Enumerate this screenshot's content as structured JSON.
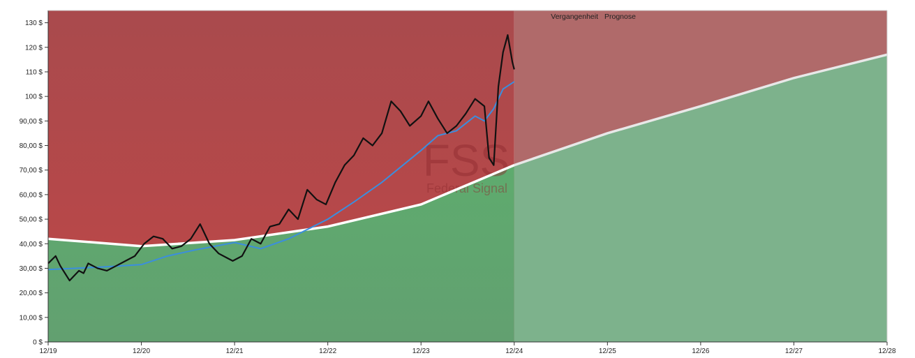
{
  "chart_data": {
    "type": "area",
    "watermark": {
      "ticker": "FSS",
      "name": "Federal Signal"
    },
    "region_labels": {
      "past": "Vergangenheit",
      "forecast": "Prognose"
    },
    "x_ticks": [
      "12/19",
      "12/20",
      "12/21",
      "12/22",
      "12/23",
      "12/24",
      "12/25",
      "12/26",
      "12/27",
      "12/28"
    ],
    "x_range": [
      2019.92,
      2028.92
    ],
    "forecast_start": 2024.92,
    "ylim": [
      0,
      135
    ],
    "y_ticks": [
      0,
      10,
      20,
      30,
      40,
      50,
      60,
      70,
      80,
      90,
      100,
      110,
      120,
      130
    ],
    "y_tick_labels": [
      "0 $",
      "10,00 $",
      "20,00 $",
      "30,00 $",
      "40,00 $",
      "50,00 $",
      "60,00 $",
      "70,00 $",
      "80,00 $",
      "90,00 $",
      "100 $",
      "110 $",
      "120 $",
      "130 $"
    ],
    "colors": {
      "red_zone": "#b84848",
      "green_zone": "#5fae73",
      "forecast_red": "#b06a6a",
      "forecast_green": "#7db28c",
      "fair_value_line": "#ffffff",
      "price_line": "#111111",
      "moving_average": "#3b8ede"
    },
    "series": [
      {
        "key": "fair_value",
        "x": [
          2019.92,
          2020.92,
          2021.92,
          2022.92,
          2023.92,
          2024.92,
          2025.92,
          2026.92,
          2027.92,
          2028.92
        ],
        "values": [
          42,
          39,
          41.5,
          47,
          56,
          72,
          85,
          96,
          107.5,
          117
        ]
      },
      {
        "key": "price",
        "x": [
          2019.92,
          2020.0,
          2020.05,
          2020.1,
          2020.15,
          2020.2,
          2020.25,
          2020.3,
          2020.35,
          2020.45,
          2020.55,
          2020.65,
          2020.75,
          2020.85,
          2020.95,
          2021.05,
          2021.15,
          2021.25,
          2021.35,
          2021.45,
          2021.55,
          2021.65,
          2021.75,
          2021.85,
          2021.9,
          2022.0,
          2022.1,
          2022.2,
          2022.3,
          2022.4,
          2022.5,
          2022.6,
          2022.7,
          2022.8,
          2022.9,
          2023.0,
          2023.1,
          2023.2,
          2023.3,
          2023.4,
          2023.5,
          2023.6,
          2023.7,
          2023.8,
          2023.92,
          2024.0,
          2024.1,
          2024.2,
          2024.3,
          2024.4,
          2024.5,
          2024.6,
          2024.65,
          2024.7,
          2024.75,
          2024.8,
          2024.85,
          2024.9,
          2024.92
        ],
        "values": [
          32,
          35,
          31,
          28,
          25,
          27,
          29,
          28,
          32,
          30,
          29,
          31,
          33,
          35,
          40,
          43,
          42,
          38,
          39,
          42,
          48,
          40,
          36,
          34,
          33,
          35,
          42,
          40,
          47,
          48,
          54,
          50,
          62,
          58,
          56,
          65,
          72,
          76,
          83,
          80,
          85,
          98,
          94,
          88,
          92,
          98,
          91,
          85,
          88,
          93,
          99,
          96,
          75,
          72,
          104,
          118,
          125,
          114,
          111
        ]
      },
      {
        "key": "moving_average",
        "x": [
          2019.92,
          2020.2,
          2020.5,
          2020.92,
          2021.2,
          2021.5,
          2021.92,
          2022.2,
          2022.5,
          2022.92,
          2023.2,
          2023.5,
          2023.92,
          2024.1,
          2024.3,
          2024.5,
          2024.6,
          2024.7,
          2024.8,
          2024.92
        ],
        "values": [
          29.5,
          30,
          30.5,
          31.5,
          35,
          37.5,
          40.5,
          38,
          42,
          50,
          57,
          65,
          78,
          84,
          86,
          92,
          90,
          95,
          103,
          106
        ]
      }
    ]
  }
}
